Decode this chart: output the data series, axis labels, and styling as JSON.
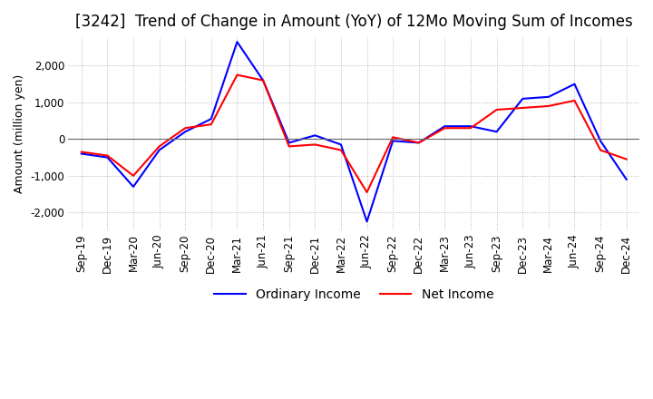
{
  "title": "[3242]  Trend of Change in Amount (YoY) of 12Mo Moving Sum of Incomes",
  "ylabel": "Amount (million yen)",
  "ylim": [
    -2500,
    2800
  ],
  "yticks": [
    -2000,
    -1000,
    0,
    1000,
    2000
  ],
  "dates": [
    "Sep-19",
    "Dec-19",
    "Mar-20",
    "Jun-20",
    "Sep-20",
    "Dec-20",
    "Mar-21",
    "Jun-21",
    "Sep-21",
    "Dec-21",
    "Mar-22",
    "Jun-22",
    "Sep-22",
    "Dec-22",
    "Mar-23",
    "Jun-23",
    "Sep-23",
    "Dec-23",
    "Mar-24",
    "Jun-24",
    "Sep-24",
    "Dec-24"
  ],
  "ordinary_income": [
    -400,
    -500,
    -1300,
    -300,
    200,
    550,
    2650,
    1600,
    -100,
    100,
    -150,
    -2250,
    -50,
    -100,
    350,
    350,
    200,
    1100,
    1150,
    1500,
    -50,
    -1100
  ],
  "net_income": [
    -350,
    -450,
    -1000,
    -200,
    300,
    400,
    1750,
    1600,
    -200,
    -150,
    -300,
    -1450,
    50,
    -100,
    300,
    300,
    800,
    850,
    900,
    1050,
    -300,
    -550
  ],
  "ordinary_color": "#0000ff",
  "net_color": "#ff0000",
  "grid_color": "#aaaaaa",
  "background_color": "#ffffff",
  "title_fontsize": 12,
  "label_fontsize": 9,
  "tick_fontsize": 8.5,
  "legend_fontsize": 10
}
